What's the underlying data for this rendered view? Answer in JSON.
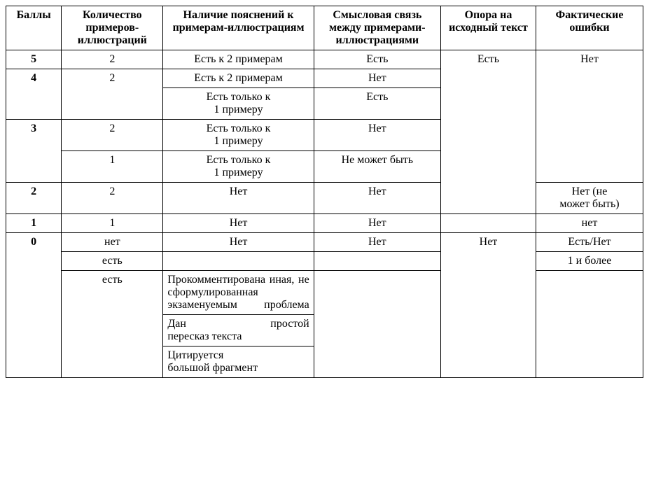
{
  "headers": {
    "col0": "Баллы",
    "col1": "Количество примеров-иллюстраций",
    "col2": "Наличие пояснений к примерам-иллюстрациям",
    "col3": "Смысловая связь между примерами-иллюстрациями",
    "col4": "Опора на исходный текст",
    "col5": "Фактические ошибки"
  },
  "r5": {
    "score": "5",
    "count": "2",
    "explain": "Есть к 2 примерам",
    "link": "Есть",
    "source": "Есть",
    "err": "Нет"
  },
  "r4a": {
    "score": "4",
    "count": "2",
    "explain": "Есть к 2 примерам",
    "link": "Нет"
  },
  "r4b": {
    "explain_l1": "Есть только к",
    "explain_l2": "1 примеру",
    "link": "Есть"
  },
  "r3a": {
    "score": "3",
    "count": "2",
    "explain_l1": "Есть только к",
    "explain_l2": "1 примеру",
    "link": "Нет"
  },
  "r3b": {
    "count": "1",
    "explain_l1": "Есть только к",
    "explain_l2": "1 примеру",
    "link": "Не может быть"
  },
  "r2": {
    "score": "2",
    "count": "2",
    "explain": "Нет",
    "link": "Нет",
    "err_l1": "Нет (не",
    "err_l2": "может быть)"
  },
  "r1": {
    "score": "1",
    "count": "1",
    "explain": "Нет",
    "link": "Нет",
    "err": "нет"
  },
  "r0a": {
    "score": "0",
    "count": "нет",
    "explain": "Нет",
    "link": "Нет",
    "source": "Нет",
    "err": "Есть/Нет"
  },
  "r0b": {
    "count": "есть",
    "err": "1 и более"
  },
  "r0c": {
    "count": "есть",
    "explain": "Прокомментирована иная, не сформулированная экзаменуемым проблема"
  },
  "r0d": {
    "explain_l1": "Дан",
    "explain_l2": "простой",
    "explain_l3": "пересказ текста"
  },
  "r0e": {
    "explain_l1": "Цитируется",
    "explain_l2": "большой фрагмент"
  }
}
